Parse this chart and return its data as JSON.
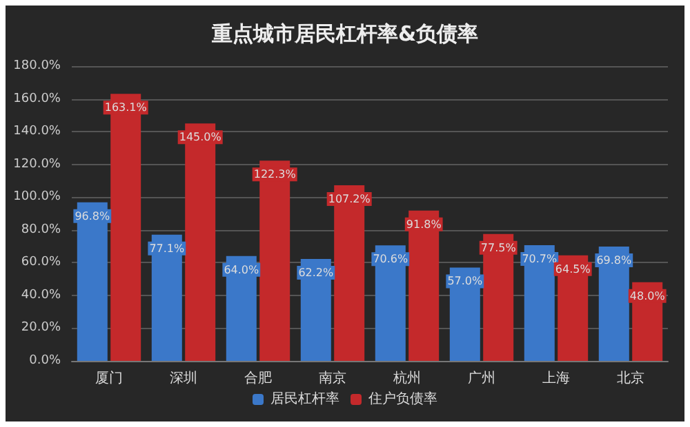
{
  "chart_data": {
    "type": "bar",
    "title": "重点城市居民杠杆率&负债率",
    "categories": [
      "厦门",
      "深圳",
      "合肥",
      "南京",
      "杭州",
      "广州",
      "上海",
      "北京"
    ],
    "series": [
      {
        "name": "居民杠杆率",
        "color": "#3b78c9",
        "values": [
          96.8,
          77.1,
          64.0,
          62.2,
          70.6,
          57.0,
          70.7,
          69.8
        ],
        "value_labels": [
          "96.8%",
          "77.1%",
          "64.0%",
          "62.2%",
          "70.6%",
          "57.0%",
          "70.7%",
          "69.8%"
        ]
      },
      {
        "name": "住户负债率",
        "color": "#c4292b",
        "values": [
          163.1,
          145.0,
          122.3,
          107.2,
          91.8,
          77.5,
          64.5,
          48.0
        ],
        "value_labels": [
          "163.1%",
          "145.0%",
          "122.3%",
          "107.2%",
          "91.8%",
          "77.5%",
          "64.5%",
          "48.0%"
        ]
      }
    ],
    "ylim": [
      0,
      180
    ],
    "yticks": [
      {
        "value": 0,
        "label": "0.0%"
      },
      {
        "value": 20,
        "label": "20.0%"
      },
      {
        "value": 40,
        "label": "40.0%"
      },
      {
        "value": 60,
        "label": "60.0%"
      },
      {
        "value": 80,
        "label": "80.0%"
      },
      {
        "value": 100,
        "label": "100.0%"
      },
      {
        "value": 120,
        "label": "120.0%"
      },
      {
        "value": 140,
        "label": "140.0%"
      },
      {
        "value": 160,
        "label": "160.0%"
      },
      {
        "value": 180,
        "label": "180.0%"
      }
    ],
    "grid": "y",
    "legend": "bottom"
  }
}
